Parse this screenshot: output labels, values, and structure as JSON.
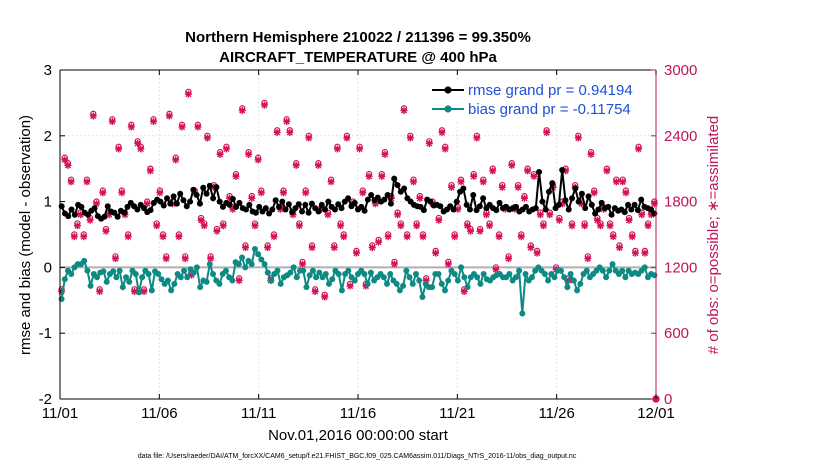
{
  "chart_data": {
    "type": "line",
    "title": "Northern Hemisphere 210022 / 211396 = 99.350%",
    "subtitle": "AIRCRAFT_TEMPERATURE @ 400 hPa",
    "xlabel": "Nov.01,2016 00:00:00 start",
    "ylabel": "rmse and bias (model - observation)",
    "y2label": "# of obs: o=possible; ∗=assimilated",
    "footnote": "data file: /Users/raeder/DAI/ATM_forcXX/CAM6_setup/f.e21.FHIST_BGC.f09_025.CAM6assim.011/Diags_NTrS_2016-11/obs_diag_output.nc",
    "xlim": [
      0,
      30
    ],
    "ylim": [
      -2,
      3
    ],
    "y2lim": [
      0,
      3000
    ],
    "x_ticks": [
      0,
      5,
      10,
      15,
      20,
      25,
      30
    ],
    "x_tick_labels": [
      "11/01",
      "11/06",
      "11/11",
      "11/16",
      "11/21",
      "11/26",
      "12/01"
    ],
    "y_ticks": [
      -2,
      -1,
      0,
      1,
      2,
      3
    ],
    "y_tick_labels": [
      "-2",
      "-1",
      "0",
      "1",
      "2",
      "3"
    ],
    "y2_ticks": [
      0,
      600,
      1200,
      1800,
      2400,
      3000
    ],
    "y2_tick_labels": [
      "0",
      "600",
      "1200",
      "1800",
      "2400",
      "3000"
    ],
    "zero_line": 0,
    "legend": {
      "location": "top-right"
    },
    "colors": {
      "rmse": "#000000",
      "bias": "#0e8a84",
      "obs": "#d41159",
      "y2axis": "#c0145b",
      "legend_text": "#1f4fd6",
      "zero_line": "#b0b0b0"
    },
    "series": [
      {
        "name": "rmse grand pr = 0.94194",
        "color": "#000000",
        "values": [
          0.93,
          0.82,
          0.78,
          0.88,
          0.8,
          0.95,
          0.92,
          0.83,
          0.8,
          0.86,
          0.9,
          0.78,
          0.74,
          0.77,
          0.93,
          0.85,
          0.83,
          0.77,
          0.86,
          0.83,
          0.92,
          0.98,
          0.93,
          0.88,
          0.95,
          0.9,
          0.84,
          0.87,
          0.98,
          1.03,
          1.0,
          0.94,
          1.05,
          0.97,
          1.08,
          0.97,
          1.12,
          1.02,
          0.93,
          1.0,
          1.18,
          1.1,
          0.97,
          1.21,
          1.12,
          1.24,
          1.05,
          1.22,
          1.0,
          0.92,
          0.98,
          0.95,
          1.04,
          0.92,
          0.98,
          0.9,
          0.88,
          0.95,
          0.85,
          0.83,
          0.92,
          0.85,
          0.9,
          0.82,
          0.88,
          1.02,
          0.92,
          1.0,
          0.88,
          0.96,
          0.84,
          0.9,
          0.96,
          0.85,
          0.95,
          0.83,
          0.97,
          0.9,
          0.85,
          0.95,
          0.88,
          1.0,
          0.92,
          0.88,
          0.96,
          0.9,
          1.0,
          1.05,
          0.93,
          0.98,
          0.88,
          0.92,
          0.86,
          1.03,
          1.1,
          1.02,
          1.06,
          1.0,
          1.03,
          1.1,
          0.97,
          1.35,
          1.25,
          1.15,
          1.2,
          1.05,
          1.0,
          0.95,
          0.93,
          0.92,
          0.87,
          1.03,
          1.0,
          0.94,
          0.95,
          0.93,
          0.85,
          0.88,
          0.93,
          0.88,
          1.0,
          1.15,
          1.2,
          0.95,
          0.88,
          1.1,
          0.87,
          0.93,
          1.05,
          0.9,
          0.95,
          0.9,
          0.87,
          0.98,
          0.9,
          0.92,
          0.88,
          0.9,
          0.92,
          0.85,
          0.88,
          0.92,
          0.85,
          0.88,
          0.9,
          1.45,
          1.0,
          0.88,
          1.15,
          1.28,
          0.9,
          0.95,
          1.48,
          1.02,
          0.88,
          1.05,
          1.2,
          1.0,
          1.12,
          0.9,
          1.08,
          0.95,
          0.82,
          0.88,
          0.98,
          0.9,
          0.92,
          0.8,
          0.9,
          0.86,
          0.88,
          0.84,
          0.95,
          0.88,
          0.95,
          0.87,
          1.03,
          0.92,
          0.9,
          0.88,
          0.82
        ]
      },
      {
        "name": "bias grand pr = -0.11754",
        "color": "#0e8a84",
        "values": [
          -0.48,
          -0.18,
          -0.05,
          -0.1,
          0.0,
          0.05,
          0.05,
          0.1,
          -0.05,
          -0.28,
          -0.1,
          -0.15,
          -0.08,
          -0.06,
          -0.22,
          -0.1,
          -0.06,
          -0.15,
          -0.05,
          -0.3,
          -0.15,
          -0.22,
          -0.05,
          -0.1,
          -0.38,
          -0.15,
          -0.05,
          -0.1,
          -0.35,
          -0.06,
          -0.1,
          -0.18,
          -0.25,
          -0.2,
          -0.35,
          -0.25,
          -0.1,
          -0.15,
          -0.05,
          -0.15,
          -0.03,
          -0.08,
          0.0,
          -0.3,
          -0.2,
          -0.22,
          0.05,
          -0.1,
          -0.2,
          -0.25,
          -0.1,
          -0.05,
          -0.15,
          -0.2,
          0.08,
          0.05,
          0.15,
          0.0,
          0.1,
          0.05,
          0.28,
          0.2,
          0.12,
          0.05,
          -0.08,
          -0.2,
          -0.1,
          -0.05,
          -0.25,
          -0.15,
          -0.12,
          -0.08,
          0.0,
          -0.15,
          -0.05,
          -0.05,
          -0.3,
          -0.12,
          -0.05,
          -0.15,
          -0.08,
          -0.15,
          -0.1,
          -0.25,
          -0.18,
          -0.05,
          -0.1,
          -0.35,
          -0.1,
          -0.05,
          -0.15,
          -0.2,
          -0.1,
          -0.05,
          -0.1,
          -0.25,
          -0.08,
          -0.2,
          -0.15,
          -0.1,
          -0.15,
          -0.25,
          -0.1,
          -0.2,
          -0.25,
          -0.35,
          -0.28,
          -0.05,
          -0.15,
          -0.25,
          -0.1,
          -0.2,
          -0.45,
          -0.25,
          -0.3,
          -0.3,
          -0.1,
          -0.1,
          -0.25,
          -0.35,
          -0.2,
          -0.05,
          -0.1,
          -0.2,
          0.0,
          -0.15,
          -0.3,
          -0.15,
          -0.1,
          -0.15,
          -0.25,
          -0.1,
          -0.18,
          -0.2,
          -0.15,
          -0.12,
          -0.1,
          -0.15,
          -0.15,
          -0.1,
          -0.2,
          -0.15,
          -0.05,
          -0.7,
          -0.1,
          -0.2,
          -0.15,
          -0.05,
          0.0,
          -0.05,
          -0.1,
          -0.2,
          -0.1,
          -0.15,
          -0.05,
          -0.05,
          -0.15,
          -0.3,
          -0.1,
          -0.2,
          -0.35,
          -0.25,
          -0.1,
          -0.05,
          -0.15,
          -0.1,
          -0.05,
          0.0,
          -0.05,
          -0.15,
          -0.05,
          0.05,
          -0.05,
          -0.1,
          -0.05,
          -0.15,
          -0.05,
          -0.1,
          -0.08,
          -0.1,
          -0.05,
          0.0,
          -0.15,
          -0.1,
          -0.12
        ]
      },
      {
        "name": "# of obs possible (o)",
        "axis": "right",
        "color": "#d41159",
        "values": [
          1000,
          2200,
          2150,
          2000,
          1500,
          1600,
          1700,
          1500,
          2000,
          1650,
          2600,
          1800,
          1000,
          1900,
          1550,
          1700,
          2550,
          1300,
          2300,
          1900,
          1700,
          1500,
          2500,
          1000,
          2350,
          2300,
          1000,
          1800,
          2100,
          2550,
          1600,
          1900,
          1500,
          1300,
          2600,
          1800,
          2200,
          1500,
          2500,
          1300,
          2800,
          1150,
          1900,
          2500,
          1650,
          1600,
          2400,
          1300,
          1950,
          1550,
          2250,
          1600,
          2300,
          1850,
          1750,
          2050,
          1100,
          2650,
          1400,
          2250,
          1850,
          1600,
          2200,
          1900,
          2700,
          1400,
          1100,
          1500,
          2450,
          1750,
          1900,
          2550,
          2450,
          1700,
          2150,
          1600,
          1250,
          1900,
          2400,
          1400,
          1000,
          2150,
          1750,
          950,
          1700,
          2000,
          1400,
          2300,
          1600,
          1500,
          2400,
          1050,
          1800,
          1350,
          2300,
          1900,
          1050,
          2050,
          1400,
          1800,
          1450,
          2050,
          2250,
          1500,
          1850,
          1250,
          1700,
          1600,
          2650,
          1500,
          2400,
          2000,
          1600,
          1850,
          1500,
          1100,
          2350,
          1800,
          1350,
          1650,
          2450,
          2300,
          1250,
          1950,
          1500,
          1750,
          2000,
          1000,
          1600,
          1550,
          2050,
          2400,
          1550,
          2000,
          1700,
          1600,
          2100,
          1200,
          1500,
          1950,
          1750,
          1300,
          2150,
          1750,
          1950,
          1500,
          1850,
          2100,
          1400,
          2050,
          1350,
          1700,
          1600,
          2450,
          1700,
          1950,
          1200,
          1650,
          1800,
          2100,
          1100,
          1600,
          1950,
          2400,
          1800,
          1600,
          1300,
          2250,
          1900,
          1650,
          1600,
          1750,
          2100,
          1600,
          1500,
          2000,
          1400,
          2000,
          1900,
          1650,
          1500,
          1350,
          2300,
          1700,
          1350,
          1600,
          1700,
          1800
        ]
      },
      {
        "name": "# of obs assimilated (∗)",
        "axis": "right",
        "color": "#d41159",
        "values": [
          980,
          2180,
          2130,
          1980,
          1480,
          1580,
          1680,
          1480,
          1980,
          1630,
          2580,
          1780,
          980,
          1880,
          1530,
          1680,
          2530,
          1280,
          2280,
          1880,
          1680,
          1480,
          2480,
          980,
          2330,
          2280,
          980,
          1780,
          2080,
          2530,
          1580,
          1880,
          1480,
          1280,
          2580,
          1780,
          2180,
          1480,
          2480,
          1280,
          2780,
          1130,
          1880,
          2480,
          1630,
          1580,
          2380,
          1280,
          1930,
          1530,
          2230,
          1580,
          2280,
          1830,
          1730,
          2030,
          1080,
          2630,
          1380,
          2230,
          1830,
          1580,
          2180,
          1880,
          2680,
          1380,
          1080,
          1480,
          2430,
          1730,
          1880,
          2530,
          2430,
          1680,
          2130,
          1580,
          1230,
          1880,
          2380,
          1380,
          980,
          2130,
          1730,
          930,
          1680,
          1980,
          1380,
          2280,
          1580,
          1480,
          2380,
          1030,
          1780,
          1330,
          2280,
          1880,
          1030,
          2030,
          1380,
          1780,
          1430,
          2030,
          2230,
          1480,
          1830,
          1230,
          1680,
          1580,
          2630,
          1480,
          2380,
          1980,
          1580,
          1830,
          1480,
          1080,
          2330,
          1780,
          1330,
          1630,
          2430,
          2280,
          1230,
          1930,
          1480,
          1730,
          1980,
          980,
          1580,
          1530,
          2030,
          2380,
          1530,
          1980,
          1680,
          1580,
          2080,
          1180,
          1480,
          1930,
          1730,
          1280,
          2130,
          1730,
          1930,
          1480,
          1830,
          2080,
          1380,
          2030,
          1330,
          1680,
          1580,
          2430,
          1680,
          1930,
          1180,
          1630,
          1780,
          2080,
          1080,
          1580,
          1930,
          2380,
          1780,
          1580,
          1280,
          2230,
          1880,
          1630,
          1580,
          1730,
          2080,
          1580,
          1480,
          1980,
          1380,
          1980,
          1880,
          1630,
          1480,
          1330,
          2280,
          1680,
          1330,
          1580,
          1680,
          1780
        ]
      }
    ]
  }
}
